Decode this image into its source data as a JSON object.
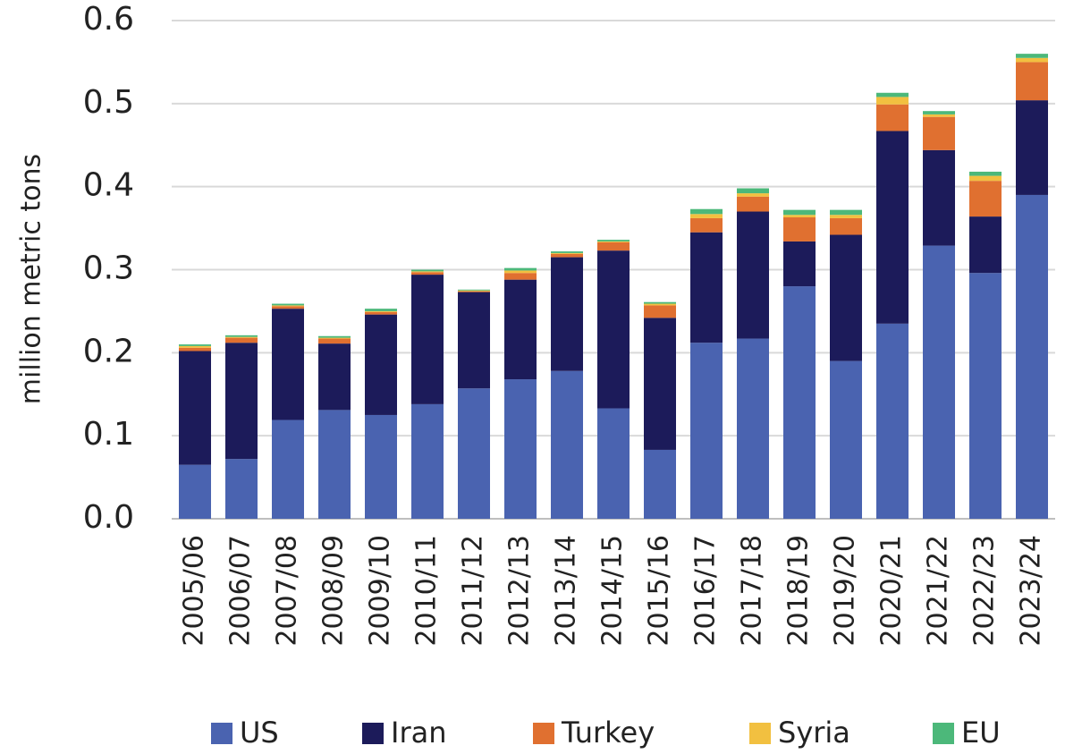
{
  "chart_data": {
    "type": "stacked_bar",
    "y_label": "million metric tons",
    "categories": [
      "2005/06",
      "2006/07",
      "2007/08",
      "2008/09",
      "2009/10",
      "2010/11",
      "2011/12",
      "2012/13",
      "2013/14",
      "2014/15",
      "2015/16",
      "2016/17",
      "2017/18",
      "2018/19",
      "2019/20",
      "2020/21",
      "2021/22",
      "2022/23",
      "2023/24"
    ],
    "series": [
      {
        "name": "US",
        "color": "#4a63b0",
        "values": [
          0.065,
          0.072,
          0.119,
          0.131,
          0.125,
          0.138,
          0.157,
          0.168,
          0.178,
          0.133,
          0.083,
          0.212,
          0.217,
          0.28,
          0.19,
          0.235,
          0.329,
          0.296,
          0.39
        ]
      },
      {
        "name": "Iran",
        "color": "#1c1b5a",
        "values": [
          0.137,
          0.14,
          0.134,
          0.08,
          0.121,
          0.156,
          0.116,
          0.12,
          0.137,
          0.19,
          0.159,
          0.133,
          0.153,
          0.054,
          0.152,
          0.232,
          0.115,
          0.068,
          0.114
        ]
      },
      {
        "name": "Turkey",
        "color": "#e07030",
        "values": [
          0.004,
          0.006,
          0.003,
          0.006,
          0.003,
          0.003,
          0.001,
          0.008,
          0.004,
          0.01,
          0.015,
          0.017,
          0.018,
          0.029,
          0.02,
          0.032,
          0.04,
          0.043,
          0.046
        ]
      },
      {
        "name": "Syria",
        "color": "#f2c040",
        "values": [
          0.002,
          0.001,
          0.001,
          0.001,
          0.001,
          0.001,
          0.001,
          0.003,
          0.001,
          0.001,
          0.002,
          0.005,
          0.004,
          0.003,
          0.004,
          0.009,
          0.003,
          0.006,
          0.005
        ]
      },
      {
        "name": "EU",
        "color": "#4cb87a",
        "values": [
          0.002,
          0.002,
          0.002,
          0.002,
          0.003,
          0.002,
          0.001,
          0.003,
          0.002,
          0.002,
          0.002,
          0.006,
          0.006,
          0.006,
          0.006,
          0.005,
          0.004,
          0.005,
          0.005
        ]
      }
    ],
    "ylim": [
      0,
      0.6
    ],
    "yticks": [
      {
        "value": 0,
        "label": "0.0"
      },
      0.1,
      0.2,
      0.3,
      0.4,
      0.5,
      0.6
    ],
    "grid": true,
    "legend": "bottom"
  }
}
